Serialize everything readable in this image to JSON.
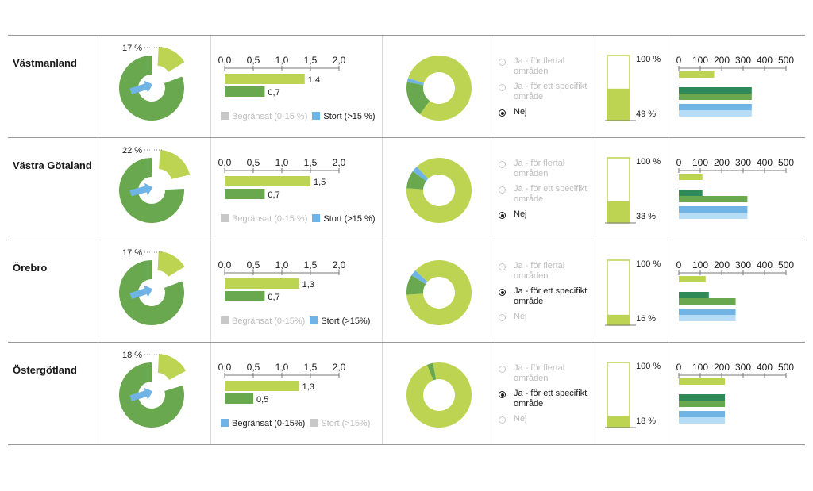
{
  "colors": {
    "light_green": "#bdd452",
    "mid_green": "#6aa84f",
    "dark_green": "#2e8b57",
    "blue": "#6fb4e4",
    "light_blue": "#b7dcf5",
    "grey": "#c8c8c8"
  },
  "options": [
    "Ja - för flertal områden",
    "Ja - för ett specifikt område",
    "Nej"
  ],
  "bar_axis_ticks": [
    "0,0",
    "0,5",
    "1,0",
    "1,5",
    "2,0"
  ],
  "right_axis_ticks": [
    "0",
    "100",
    "200",
    "300",
    "400",
    "500"
  ],
  "column_label_top": "100 %",
  "chart_data": [
    {
      "region": "Västmanland",
      "pie": {
        "type": "pie",
        "highlight_label": "17 %",
        "highlight_fraction": 0.17
      },
      "bars": {
        "type": "bar",
        "xlim": [
          0,
          2.0
        ],
        "values": [
          1.4,
          0.7
        ],
        "value_labels": [
          "1,4",
          "0,7"
        ],
        "legend": [
          {
            "label": "Begränsat (0-15 %)",
            "active": false
          },
          {
            "label": "Stort (>15 %)",
            "active": true
          }
        ]
      },
      "donut": {
        "type": "pie",
        "values": [
          80,
          18,
          2
        ]
      },
      "option_selected": 2,
      "column": {
        "type": "bar",
        "fill_fraction": 0.49,
        "label": "49 %"
      },
      "hbars": {
        "type": "bar",
        "xlim": [
          0,
          500
        ],
        "values": [
          165,
          340,
          340,
          340,
          340
        ]
      }
    },
    {
      "region": "Västra Götaland",
      "pie": {
        "type": "pie",
        "highlight_label": "22 %",
        "highlight_fraction": 0.22
      },
      "bars": {
        "type": "bar",
        "xlim": [
          0,
          2.0
        ],
        "values": [
          1.5,
          0.7
        ],
        "value_labels": [
          "1,5",
          "0,7"
        ],
        "legend": [
          {
            "label": "Begränsat (0-15 %)",
            "active": false
          },
          {
            "label": "Stort (>15 %)",
            "active": true
          }
        ]
      },
      "donut": {
        "type": "pie",
        "values": [
          88,
          9,
          3
        ]
      },
      "option_selected": 2,
      "column": {
        "type": "bar",
        "fill_fraction": 0.33,
        "label": "33 %"
      },
      "hbars": {
        "type": "bar",
        "xlim": [
          0,
          500
        ],
        "values": [
          110,
          110,
          320,
          320,
          320
        ]
      }
    },
    {
      "region": "Örebro",
      "pie": {
        "type": "pie",
        "highlight_label": "17 %",
        "highlight_fraction": 0.17
      },
      "bars": {
        "type": "bar",
        "xlim": [
          0,
          2.0
        ],
        "values": [
          1.3,
          0.7
        ],
        "value_labels": [
          "1,3",
          "0,7"
        ],
        "legend": [
          {
            "label": "Begränsat (0-15%)",
            "active": false
          },
          {
            "label": "Stort (>15%)",
            "active": true
          }
        ]
      },
      "donut": {
        "type": "pie",
        "values": [
          87,
          10,
          3
        ]
      },
      "option_selected": 1,
      "column": {
        "type": "bar",
        "fill_fraction": 0.16,
        "label": "16 %"
      },
      "hbars": {
        "type": "bar",
        "xlim": [
          0,
          500
        ],
        "values": [
          125,
          140,
          265,
          265,
          265
        ]
      }
    },
    {
      "region": "Östergötland",
      "pie": {
        "type": "pie",
        "highlight_label": "18 %",
        "highlight_fraction": 0.18
      },
      "bars": {
        "type": "bar",
        "xlim": [
          0,
          2.0
        ],
        "values": [
          1.3,
          0.5
        ],
        "value_labels": [
          "1,3",
          "0,5"
        ],
        "legend": [
          {
            "label": "Begränsat (0-15%)",
            "active": true
          },
          {
            "label": "Stort (>15%)",
            "active": false
          }
        ]
      },
      "donut": {
        "type": "pie",
        "values": [
          97,
          3
        ]
      },
      "option_selected": 1,
      "column": {
        "type": "bar",
        "fill_fraction": 0.18,
        "label": "18 %"
      },
      "hbars": {
        "type": "bar",
        "xlim": [
          0,
          500
        ],
        "values": [
          215,
          215,
          215,
          215,
          215
        ]
      }
    }
  ]
}
